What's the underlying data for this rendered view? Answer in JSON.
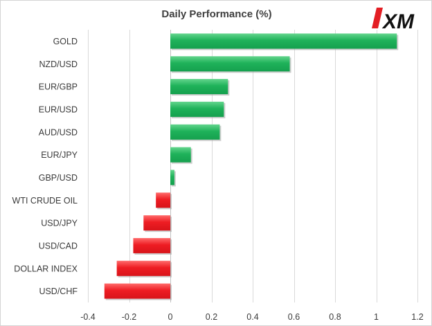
{
  "chart_data": {
    "type": "bar",
    "orientation": "horizontal",
    "title": "Daily Performance  (%)",
    "categories": [
      "GOLD",
      "NZD/USD",
      "EUR/GBP",
      "EUR/USD",
      "AUD/USD",
      "EUR/JPY",
      "GBP/USD",
      "WTI CRUDE OIL",
      "USD/JPY",
      "USD/CAD",
      "DOLLAR INDEX",
      "USD/CHF"
    ],
    "values": [
      1.1,
      0.58,
      0.28,
      0.26,
      0.24,
      0.1,
      0.02,
      -0.07,
      -0.13,
      -0.18,
      -0.26,
      -0.32
    ],
    "xlim": [
      -0.4,
      1.2
    ],
    "xticks": [
      -0.4,
      -0.2,
      0,
      0.2,
      0.4,
      0.6,
      0.8,
      1,
      1.2
    ],
    "xtick_labels": [
      "-0.4",
      "-0.2",
      "0",
      "0.2",
      "0.4",
      "0.6",
      "0.8",
      "1",
      "1.2"
    ],
    "grid": "vertical",
    "legend": "none",
    "colors": {
      "positive": "#1fb25a",
      "negative": "#ee1d23",
      "positive_light": "#63d58d",
      "negative_light": "#ff6b6b",
      "shadow": "#a6a6a6"
    }
  },
  "logo": {
    "text": "XM",
    "icon": "xm-logo-icon",
    "accent": "#e31e24"
  }
}
